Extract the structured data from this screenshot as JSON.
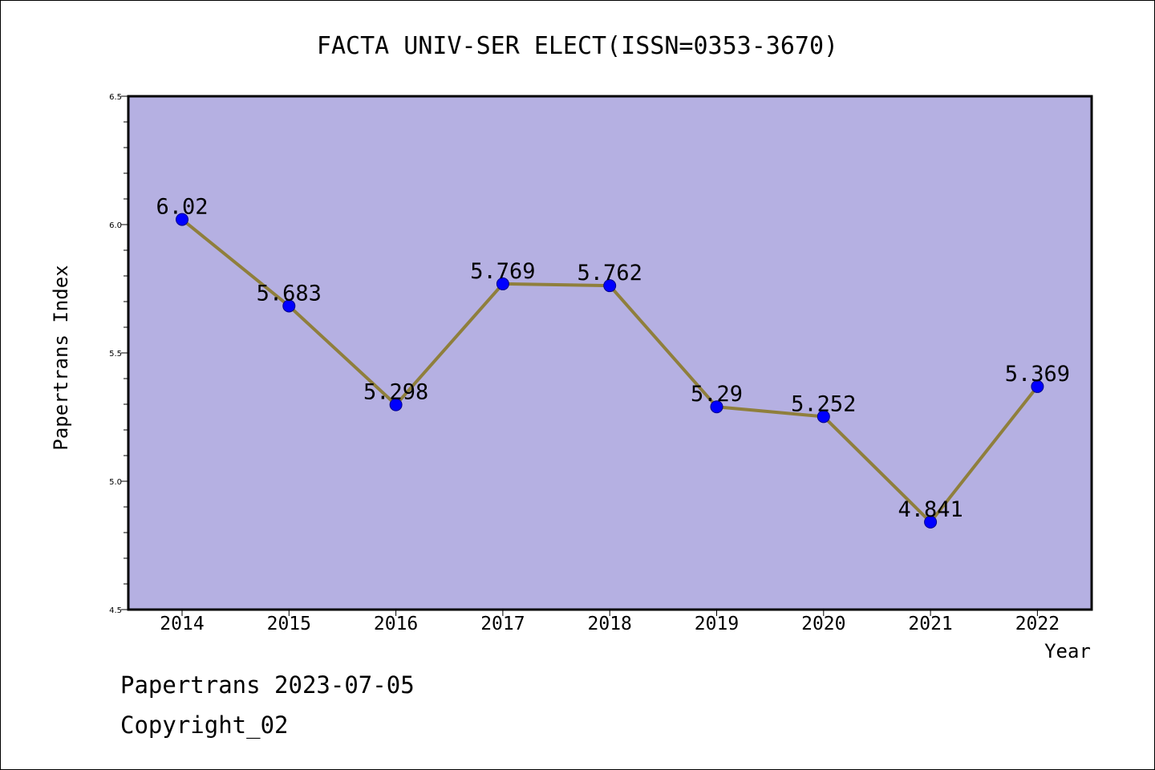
{
  "chart_data": {
    "type": "line",
    "title": "FACTA UNIV-SER ELECT(ISSN=0353-3670)",
    "xlabel": "Year",
    "ylabel": "Papertrans Index",
    "categories": [
      "2014",
      "2015",
      "2016",
      "2017",
      "2018",
      "2019",
      "2020",
      "2021",
      "2022"
    ],
    "series": [
      {
        "values": [
          6.02,
          5.683,
          5.298,
          5.769,
          5.762,
          5.29,
          5.252,
          4.841,
          5.369
        ],
        "labels": [
          "6.02",
          "5.683",
          "5.298",
          "5.769",
          "5.762",
          "5.29",
          "5.252",
          "4.841",
          "5.369"
        ]
      }
    ],
    "ylim": [
      4.5,
      6.5
    ],
    "yticks": [
      4.5,
      5.0,
      5.5,
      6.0,
      6.5
    ],
    "ytick_labels": [
      "4.5",
      "5.0",
      "5.5",
      "6.0",
      "6.5"
    ],
    "grid": false,
    "colors": {
      "plot_background": "#b5b0e2",
      "line": "#8f7f3c",
      "marker": "#0000ff"
    }
  },
  "footer": {
    "line1": "Papertrans 2023-07-05",
    "line2": "Copyright_02"
  }
}
